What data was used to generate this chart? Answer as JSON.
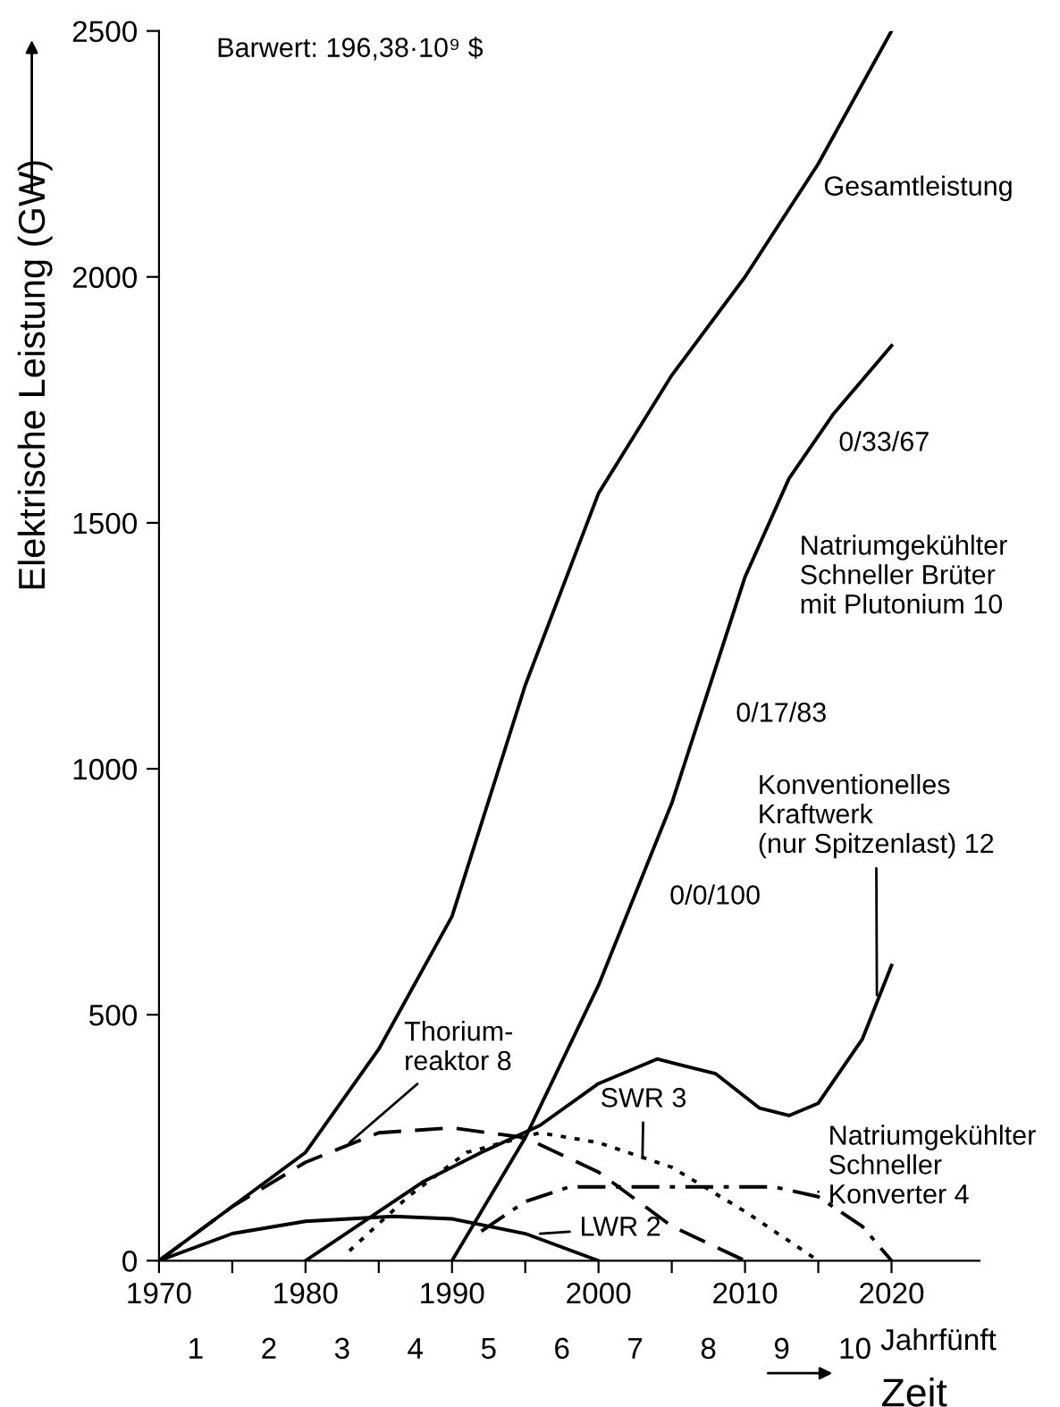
{
  "chart_data": {
    "type": "line",
    "ylabel": "Elektrische Leistung (GW)",
    "xlabel": "Zeit",
    "x2label": "Jahrfünft",
    "xlim": [
      1970,
      2026
    ],
    "xticks": [
      1970,
      {
        "value": 1975,
        "label": null
      },
      1980,
      {
        "value": 1985,
        "label": null
      },
      1990,
      {
        "value": 1995,
        "label": null
      },
      2000,
      {
        "value": 2005,
        "label": null
      },
      2010,
      {
        "value": 2015,
        "label": null
      },
      2020
    ],
    "x2lim": [
      0.5,
      11.7
    ],
    "x2ticks": [
      1,
      2,
      3,
      4,
      5,
      6,
      7,
      8,
      9,
      10
    ],
    "ylim": [
      0,
      2500
    ],
    "yticks": [
      0,
      500,
      1000,
      1500,
      2000,
      2500
    ],
    "grid": false,
    "legend": false,
    "marker": "none",
    "series": [
      {
        "color": "#000000",
        "line_style": "solid",
        "x": [
          1970,
          1975,
          1980,
          1985,
          1990,
          1995,
          2000,
          2005,
          2010,
          2015,
          2020
        ],
        "values": [
          0,
          110,
          220,
          430,
          700,
          1170,
          1560,
          1800,
          2000,
          2230,
          2500
        ]
      },
      {
        "color": "#000000",
        "line_style": "solid",
        "x": [
          1990,
          1995,
          2000,
          2005,
          2010,
          2013,
          2016,
          2020
        ],
        "values": [
          0,
          250,
          560,
          930,
          1390,
          1590,
          1720,
          1860
        ]
      },
      {
        "color": "#000000",
        "line_style": "solid",
        "x": [
          1980,
          1984,
          1988,
          1992,
          1996,
          2000,
          2004,
          2008,
          2011,
          2013,
          2015,
          2018,
          2020
        ],
        "values": [
          0,
          80,
          160,
          220,
          275,
          360,
          410,
          380,
          310,
          295,
          320,
          450,
          600
        ]
      },
      {
        "color": "#000000",
        "line_style": "solid",
        "x": [
          1970,
          1975,
          1980,
          1986,
          1990,
          1995,
          2000
        ],
        "values": [
          0,
          55,
          80,
          90,
          85,
          55,
          0
        ]
      },
      {
        "color": "#000000",
        "line_style": "dashed",
        "x": [
          1970,
          1975,
          1980,
          1985,
          1990,
          1995,
          2000,
          2005,
          2010
        ],
        "values": [
          0,
          110,
          200,
          260,
          270,
          250,
          180,
          70,
          0
        ]
      },
      {
        "color": "#000000",
        "line_style": "dotted",
        "x": [
          1983,
          1987,
          1991,
          1996,
          2000,
          2005,
          2010,
          2015
        ],
        "values": [
          20,
          130,
          220,
          260,
          240,
          190,
          100,
          0
        ]
      },
      {
        "color": "#000000",
        "line_style": "dashdot",
        "x": [
          1992,
          1995,
          1998,
          2005,
          2012,
          2015,
          2018,
          2020
        ],
        "values": [
          60,
          120,
          150,
          150,
          150,
          130,
          70,
          0
        ]
      }
    ],
    "annotations": [
      "Barwert: 196,38·10⁹ $",
      {
        "text": "Gesamtleistung",
        "x": 2014,
        "y": 2180
      },
      {
        "text": "0/33/67",
        "x": 2013,
        "y": 1590
      },
      {
        "text": "Natriumgekühlter\nSchneller Brüter\nmit Plutonium 10",
        "x": 2010,
        "y": 1390
      },
      {
        "text": "0/17/83",
        "x": 2007,
        "y": 1110
      },
      {
        "text": "0/0/100",
        "x": 2004,
        "y": 850
      },
      {
        "text": "Konventionelles\nKraftwerk\n(nur Spitzenlast) 12",
        "x": 2019,
        "y": 540
      },
      {
        "text": "Thorium-\nreaktor 8",
        "x": 1983,
        "y": 240
      },
      {
        "text": "SWR 3",
        "x": 2003,
        "y": 210
      },
      {
        "text": "LWR 2",
        "x": 1996,
        "y": 55
      },
      {
        "text": "Natriumgekühlter\nSchneller\nKonverter 4",
        "x": 2015,
        "y": 140
      }
    ]
  }
}
